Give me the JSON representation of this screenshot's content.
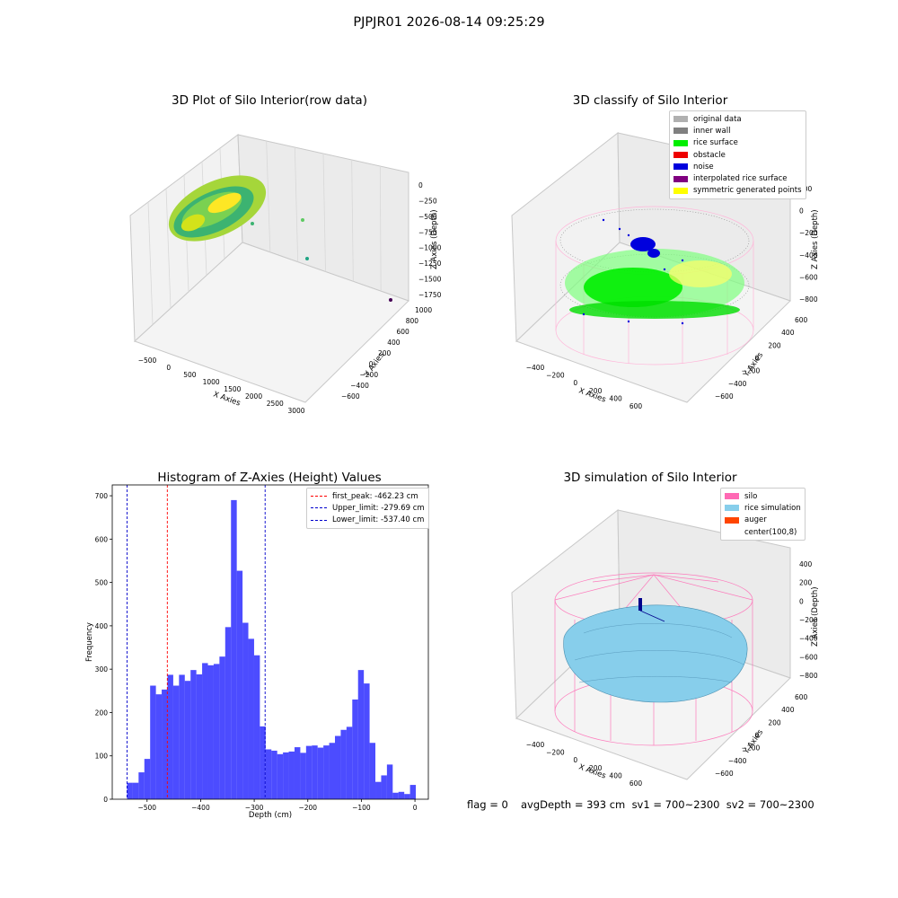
{
  "suptitle": "PJPJR01 2026-08-14 09:25:29",
  "footer": {
    "flag": "flag = 0",
    "avg": "avgDepth = 393 cm  sv1 = 700~2300  sv2 = 700~2300"
  },
  "chart_data": [
    {
      "type": "scatter",
      "title": "3D Plot of Silo Interior(row data)",
      "xlabel": "X Axies",
      "ylabel": "Y Axies",
      "zlabel": "Z Axies (Depth)",
      "x_ticks": [
        "−500",
        "0",
        "500",
        "1000",
        "1500",
        "2000",
        "2500",
        "3000"
      ],
      "y_ticks": [
        "−600",
        "−400",
        "−200",
        "0",
        "200",
        "400",
        "600",
        "800",
        "1000"
      ],
      "z_ticks": [
        "0",
        "−250",
        "−500",
        "−750",
        "−1000",
        "−1250",
        "−1500",
        "−1750"
      ],
      "xlim": [
        -600,
        3100
      ],
      "ylim": [
        -650,
        1050
      ],
      "zlim": [
        -1900,
        100
      ],
      "colormap": "viridis"
    },
    {
      "type": "scatter",
      "title": "3D classify of Silo Interior",
      "xlabel": "X Axies",
      "ylabel": "Y Axies",
      "zlabel": "Z Axies (Depth)",
      "x_ticks": [
        "−400",
        "−200",
        "0",
        "200",
        "400",
        "600"
      ],
      "y_ticks": [
        "−600",
        "−400",
        "−200",
        "0",
        "200",
        "400",
        "600"
      ],
      "z_ticks": [
        "200",
        "0",
        "−200",
        "−400",
        "−600",
        "−800"
      ],
      "xlim": [
        -550,
        750
      ],
      "ylim": [
        -650,
        650
      ],
      "zlim": [
        -900,
        300
      ],
      "legend": [
        {
          "label": "original data",
          "color": "#b0b0b0"
        },
        {
          "label": "inner wall",
          "color": "#808080"
        },
        {
          "label": "rice surface",
          "color": "#00ee00"
        },
        {
          "label": "obstacle",
          "color": "#ee0000"
        },
        {
          "label": "noise",
          "color": "#0000dd"
        },
        {
          "label": "interpolated rice surface",
          "color": "#800080"
        },
        {
          "label": "symmetric generated points",
          "color": "#ffff00"
        }
      ]
    },
    {
      "type": "bar",
      "title": "Histogram of Z-Axies (Height) Values",
      "xlabel": "Depth (cm)",
      "ylabel": "Frequency",
      "xlim": [
        -565,
        25
      ],
      "ylim": [
        0,
        725
      ],
      "x_ticks": [
        -500,
        -400,
        -300,
        -200,
        -100,
        0
      ],
      "x_tick_labels": [
        "−500",
        "−400",
        "−300",
        "−200",
        "−100",
        "0"
      ],
      "y_ticks": [
        0,
        100,
        200,
        300,
        400,
        500,
        600,
        700
      ],
      "bar_color": "#0000ff",
      "bins": {
        "start": -537.4,
        "width": 10.78
      },
      "values": [
        38,
        38,
        62,
        93,
        262,
        242,
        253,
        287,
        262,
        287,
        273,
        298,
        288,
        314,
        309,
        312,
        329,
        397,
        690,
        527,
        407,
        370,
        332,
        168,
        115,
        112,
        104,
        108,
        110,
        120,
        107,
        123,
        124,
        119,
        124,
        130,
        146,
        160,
        167,
        230,
        298,
        267,
        130,
        40,
        55,
        80,
        15,
        17,
        12,
        33
      ],
      "vlines": [
        {
          "label": "first_peak: -462.23 cm",
          "x": -462.23,
          "color": "#ff0000"
        },
        {
          "label": "Upper_limit: -279.69 cm",
          "x": -279.69,
          "color": "#0000cc"
        },
        {
          "label": "Lower_limit: -537.40 cm",
          "x": -537.4,
          "color": "#0000cc"
        }
      ]
    },
    {
      "type": "area",
      "title": "3D simulation of Silo Interior",
      "xlabel": "X Axies",
      "ylabel": "Y Axies",
      "zlabel": "Z Axies (Depth)",
      "x_ticks": [
        "−400",
        "−200",
        "0",
        "200",
        "400",
        "600"
      ],
      "y_ticks": [
        "−600",
        "−400",
        "−200",
        "0",
        "200",
        "400",
        "600"
      ],
      "z_ticks": [
        "400",
        "200",
        "0",
        "−200",
        "−400",
        "−600",
        "−800"
      ],
      "xlim": [
        -550,
        750
      ],
      "ylim": [
        -650,
        650
      ],
      "zlim": [
        -900,
        450
      ],
      "legend": [
        {
          "label": "silo",
          "color": "#ff69b4"
        },
        {
          "label": "rice simulation",
          "color": "#87ceeb"
        },
        {
          "label": "auger",
          "color": "#ff4500"
        },
        {
          "label": "center(100,8)",
          "color": ""
        }
      ]
    }
  ]
}
